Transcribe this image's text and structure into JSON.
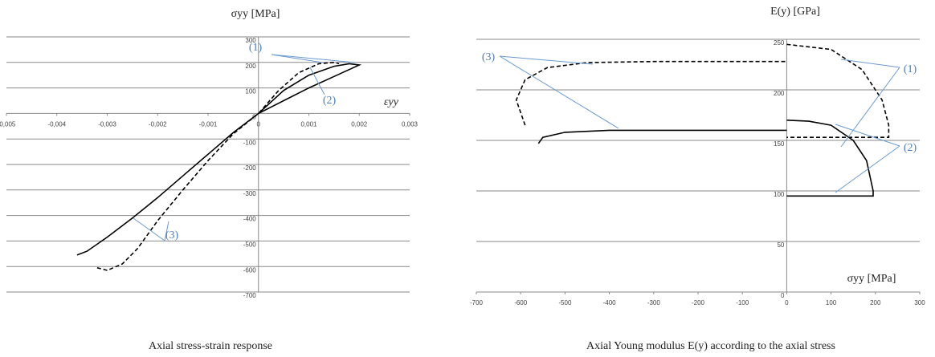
{
  "chart_data": [
    {
      "type": "line",
      "y_label": "σyy [MPa]",
      "x_label": "εyy",
      "caption": "Axial stress-strain response",
      "xlim": [
        -0.005,
        0.003
      ],
      "xticks": [
        {
          "value": -0.005,
          "label": "-0,005"
        },
        {
          "value": -0.004,
          "label": "-0,004"
        },
        {
          "value": -0.003,
          "label": "-0,003"
        },
        {
          "value": -0.002,
          "label": "-0,002"
        },
        {
          "value": -0.001,
          "label": "-0,001"
        },
        0,
        {
          "value": 0.001,
          "label": "0,001"
        },
        {
          "value": 0.002,
          "label": "0,002"
        },
        {
          "value": 0.003,
          "label": "0,003"
        }
      ],
      "ylim": [
        -700,
        300
      ],
      "yticks": [
        300,
        200,
        100,
        0,
        -100,
        -200,
        -300,
        -400,
        -500,
        -600,
        -700
      ],
      "grid": true,
      "annotations": [
        "(1)",
        "(2)",
        "(3)"
      ],
      "series": [
        {
          "color": "#000000",
          "dash": false,
          "x": [
            -0.0036,
            -0.0034,
            -0.003,
            -0.0025,
            -0.002,
            -0.0015,
            -0.001,
            -0.0005,
            0,
            0.0005,
            0.001,
            0.0015,
            0.002,
            0.0018,
            0.0015,
            0.001,
            0.0005,
            0
          ],
          "values": [
            -555,
            -540,
            -485,
            -410,
            -330,
            -245,
            -160,
            -75,
            0,
            50,
            100,
            145,
            190,
            195,
            185,
            150,
            90,
            0
          ]
        },
        {
          "color": "#000000",
          "dash": true,
          "x": [
            -0.0032,
            -0.003,
            -0.0027,
            -0.0024,
            -0.002,
            -0.0015,
            -0.001,
            -0.0005,
            0,
            0.0004,
            0.0008,
            0.0012,
            0.0015,
            0.0016
          ],
          "values": [
            -605,
            -615,
            -590,
            -530,
            -420,
            -300,
            -185,
            -80,
            0,
            90,
            160,
            195,
            200,
            195
          ]
        }
      ]
    },
    {
      "type": "line",
      "y_label": "E(y) [GPa]",
      "x_label": "σyy [MPa]",
      "caption": "Axial Young modulus E(y) according to the axial stress",
      "xlim": [
        -700,
        300
      ],
      "xticks": [
        -700,
        -600,
        -500,
        -400,
        -300,
        -200,
        -100,
        0,
        100,
        200,
        300
      ],
      "ylim": [
        0,
        250
      ],
      "yticks": [
        0,
        50,
        100,
        150,
        200,
        250
      ],
      "grid": true,
      "annotations": [
        "(3)",
        "(1)",
        "(2)"
      ],
      "series": [
        {
          "color": "#000000",
          "dash": false,
          "x": [
            -560,
            -550,
            -500,
            -400,
            -200,
            0,
            0,
            0,
            50,
            100,
            150,
            180,
            195,
            195,
            0
          ],
          "values": [
            147,
            153,
            158,
            160,
            160,
            160,
            null,
            170,
            169,
            165,
            150,
            130,
            100,
            95,
            95
          ]
        },
        {
          "color": "#000000",
          "dash": true,
          "x": [
            -590,
            -610,
            -590,
            -540,
            -450,
            -300,
            0,
            0,
            0,
            100,
            170,
            215,
            230,
            230,
            0
          ],
          "values": [
            165,
            190,
            210,
            222,
            227,
            228,
            228,
            null,
            245,
            240,
            220,
            190,
            165,
            153,
            153
          ]
        }
      ]
    }
  ]
}
